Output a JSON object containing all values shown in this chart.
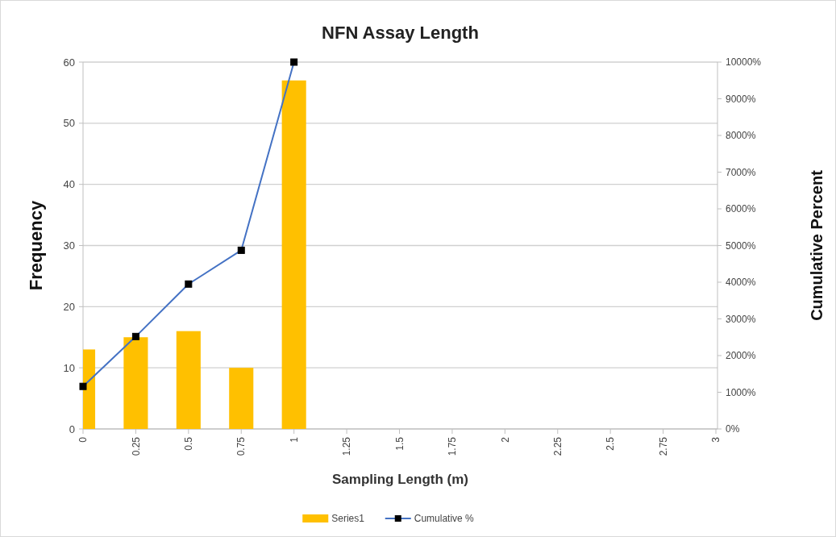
{
  "chart_data": {
    "type": "bar",
    "title": "NFN Assay Length",
    "xlabel": "Sampling Length (m)",
    "ylabel": "Frequency",
    "y2label": "Cumulative Percent",
    "categories": [
      "0",
      "0.25",
      "0.5",
      "0.75",
      "1",
      "1.25",
      "1.5",
      "1.75",
      "2",
      "2.25",
      "2.5",
      "2.75",
      "3"
    ],
    "series": [
      {
        "name": "Series1",
        "color": "#ffc000",
        "values": [
          13,
          15,
          16,
          10,
          57,
          null,
          null,
          null,
          null,
          null,
          null,
          null,
          null
        ]
      },
      {
        "name": "Cumulative %",
        "type": "line",
        "axis": "y2",
        "color": "#4472c4",
        "marker": "square",
        "values": [
          1160,
          2520,
          3950,
          4870,
          10000,
          null,
          null,
          null,
          null,
          null,
          null,
          null,
          null
        ]
      }
    ],
    "ylim": [
      0,
      60
    ],
    "yticks": [
      0,
      10,
      20,
      30,
      40,
      50,
      60
    ],
    "y2lim": [
      0,
      10000
    ],
    "y2ticks": [
      {
        "value": 0,
        "label": "0%"
      },
      {
        "value": 1000,
        "label": "1000%"
      },
      {
        "value": 2000,
        "label": "2000%"
      },
      {
        "value": 3000,
        "label": "3000%"
      },
      {
        "value": 4000,
        "label": "4000%"
      },
      {
        "value": 5000,
        "label": "5000%"
      },
      {
        "value": 6000,
        "label": "6000%"
      },
      {
        "value": 7000,
        "label": "7000%"
      },
      {
        "value": 8000,
        "label": "8000%"
      },
      {
        "value": 9000,
        "label": "9000%"
      },
      {
        "value": 10000,
        "label": "10000%"
      }
    ],
    "grid": "y",
    "legend": "bottom"
  }
}
